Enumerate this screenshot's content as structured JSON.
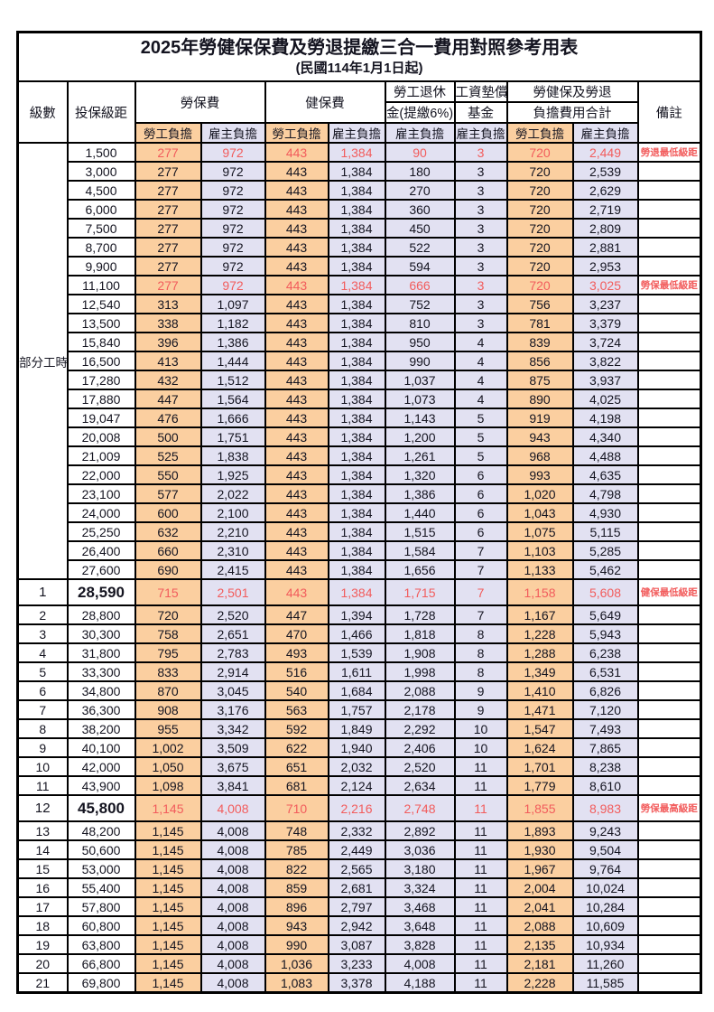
{
  "title": "2025年勞健保保費及勞退提繳三合一費用對照參考用表",
  "subtitle": "(民國114年1月1日起)",
  "header": {
    "level": "級數",
    "bracket": "投保級距",
    "labor_fee": "勞保費",
    "health_fee": "健保費",
    "pension_line1": "勞工退休",
    "pension_line2": "金(提繳6%)",
    "fund_line1": "工資墊償",
    "fund_line2": "基金",
    "total_line1": "勞健保及勞退",
    "total_line2": "負擔費用合計",
    "remark": "備註",
    "employee": "勞工負擔",
    "employer": "雇主負擔"
  },
  "part_time_label": "部分工時",
  "part_time_span": 23,
  "colors": {
    "employee_bg": "#fbcfa0",
    "employer_bg": "#e2e1f2",
    "highlight_red": "#f25c5c",
    "border": "#000000"
  },
  "rows": [
    {
      "level": "",
      "bracket": "1,500",
      "cells": [
        "277",
        "972",
        "443",
        "1,384",
        "90",
        "3",
        "720",
        "2,449"
      ],
      "remark": "勞退最低級距",
      "red": true,
      "big": false
    },
    {
      "level": "",
      "bracket": "3,000",
      "cells": [
        "277",
        "972",
        "443",
        "1,384",
        "180",
        "3",
        "720",
        "2,539"
      ],
      "remark": "",
      "red": false,
      "big": false
    },
    {
      "level": "",
      "bracket": "4,500",
      "cells": [
        "277",
        "972",
        "443",
        "1,384",
        "270",
        "3",
        "720",
        "2,629"
      ],
      "remark": "",
      "red": false,
      "big": false
    },
    {
      "level": "",
      "bracket": "6,000",
      "cells": [
        "277",
        "972",
        "443",
        "1,384",
        "360",
        "3",
        "720",
        "2,719"
      ],
      "remark": "",
      "red": false,
      "big": false
    },
    {
      "level": "",
      "bracket": "7,500",
      "cells": [
        "277",
        "972",
        "443",
        "1,384",
        "450",
        "3",
        "720",
        "2,809"
      ],
      "remark": "",
      "red": false,
      "big": false
    },
    {
      "level": "",
      "bracket": "8,700",
      "cells": [
        "277",
        "972",
        "443",
        "1,384",
        "522",
        "3",
        "720",
        "2,881"
      ],
      "remark": "",
      "red": false,
      "big": false
    },
    {
      "level": "",
      "bracket": "9,900",
      "cells": [
        "277",
        "972",
        "443",
        "1,384",
        "594",
        "3",
        "720",
        "2,953"
      ],
      "remark": "",
      "red": false,
      "big": false
    },
    {
      "level": "",
      "bracket": "11,100",
      "cells": [
        "277",
        "972",
        "443",
        "1,384",
        "666",
        "3",
        "720",
        "3,025"
      ],
      "remark": "勞保最低級距",
      "red": true,
      "big": false
    },
    {
      "level": "",
      "bracket": "12,540",
      "cells": [
        "313",
        "1,097",
        "443",
        "1,384",
        "752",
        "3",
        "756",
        "3,237"
      ],
      "remark": "",
      "red": false,
      "big": false
    },
    {
      "level": "",
      "bracket": "13,500",
      "cells": [
        "338",
        "1,182",
        "443",
        "1,384",
        "810",
        "3",
        "781",
        "3,379"
      ],
      "remark": "",
      "red": false,
      "big": false
    },
    {
      "level": "",
      "bracket": "15,840",
      "cells": [
        "396",
        "1,386",
        "443",
        "1,384",
        "950",
        "4",
        "839",
        "3,724"
      ],
      "remark": "",
      "red": false,
      "big": false
    },
    {
      "level": "",
      "bracket": "16,500",
      "cells": [
        "413",
        "1,444",
        "443",
        "1,384",
        "990",
        "4",
        "856",
        "3,822"
      ],
      "remark": "",
      "red": false,
      "big": false
    },
    {
      "level": "",
      "bracket": "17,280",
      "cells": [
        "432",
        "1,512",
        "443",
        "1,384",
        "1,037",
        "4",
        "875",
        "3,937"
      ],
      "remark": "",
      "red": false,
      "big": false
    },
    {
      "level": "",
      "bracket": "17,880",
      "cells": [
        "447",
        "1,564",
        "443",
        "1,384",
        "1,073",
        "4",
        "890",
        "4,025"
      ],
      "remark": "",
      "red": false,
      "big": false
    },
    {
      "level": "",
      "bracket": "19,047",
      "cells": [
        "476",
        "1,666",
        "443",
        "1,384",
        "1,143",
        "5",
        "919",
        "4,198"
      ],
      "remark": "",
      "red": false,
      "big": false
    },
    {
      "level": "",
      "bracket": "20,008",
      "cells": [
        "500",
        "1,751",
        "443",
        "1,384",
        "1,200",
        "5",
        "943",
        "4,340"
      ],
      "remark": "",
      "red": false,
      "big": false
    },
    {
      "level": "",
      "bracket": "21,009",
      "cells": [
        "525",
        "1,838",
        "443",
        "1,384",
        "1,261",
        "5",
        "968",
        "4,488"
      ],
      "remark": "",
      "red": false,
      "big": false
    },
    {
      "level": "",
      "bracket": "22,000",
      "cells": [
        "550",
        "1,925",
        "443",
        "1,384",
        "1,320",
        "6",
        "993",
        "4,635"
      ],
      "remark": "",
      "red": false,
      "big": false
    },
    {
      "level": "",
      "bracket": "23,100",
      "cells": [
        "577",
        "2,022",
        "443",
        "1,384",
        "1,386",
        "6",
        "1,020",
        "4,798"
      ],
      "remark": "",
      "red": false,
      "big": false
    },
    {
      "level": "",
      "bracket": "24,000",
      "cells": [
        "600",
        "2,100",
        "443",
        "1,384",
        "1,440",
        "6",
        "1,043",
        "4,930"
      ],
      "remark": "",
      "red": false,
      "big": false
    },
    {
      "level": "",
      "bracket": "25,250",
      "cells": [
        "632",
        "2,210",
        "443",
        "1,384",
        "1,515",
        "6",
        "1,075",
        "5,115"
      ],
      "remark": "",
      "red": false,
      "big": false
    },
    {
      "level": "",
      "bracket": "26,400",
      "cells": [
        "660",
        "2,310",
        "443",
        "1,384",
        "1,584",
        "7",
        "1,103",
        "5,285"
      ],
      "remark": "",
      "red": false,
      "big": false
    },
    {
      "level": "",
      "bracket": "27,600",
      "cells": [
        "690",
        "2,415",
        "443",
        "1,384",
        "1,656",
        "7",
        "1,133",
        "5,462"
      ],
      "remark": "",
      "red": false,
      "big": false
    },
    {
      "level": "1",
      "bracket": "28,590",
      "cells": [
        "715",
        "2,501",
        "443",
        "1,384",
        "1,715",
        "7",
        "1,158",
        "5,608"
      ],
      "remark": "健保最低級距",
      "red": true,
      "big": true
    },
    {
      "level": "2",
      "bracket": "28,800",
      "cells": [
        "720",
        "2,520",
        "447",
        "1,394",
        "1,728",
        "7",
        "1,167",
        "5,649"
      ],
      "remark": "",
      "red": false,
      "big": false
    },
    {
      "level": "3",
      "bracket": "30,300",
      "cells": [
        "758",
        "2,651",
        "470",
        "1,466",
        "1,818",
        "8",
        "1,228",
        "5,943"
      ],
      "remark": "",
      "red": false,
      "big": false
    },
    {
      "level": "4",
      "bracket": "31,800",
      "cells": [
        "795",
        "2,783",
        "493",
        "1,539",
        "1,908",
        "8",
        "1,288",
        "6,238"
      ],
      "remark": "",
      "red": false,
      "big": false
    },
    {
      "level": "5",
      "bracket": "33,300",
      "cells": [
        "833",
        "2,914",
        "516",
        "1,611",
        "1,998",
        "8",
        "1,349",
        "6,531"
      ],
      "remark": "",
      "red": false,
      "big": false
    },
    {
      "level": "6",
      "bracket": "34,800",
      "cells": [
        "870",
        "3,045",
        "540",
        "1,684",
        "2,088",
        "9",
        "1,410",
        "6,826"
      ],
      "remark": "",
      "red": false,
      "big": false
    },
    {
      "level": "7",
      "bracket": "36,300",
      "cells": [
        "908",
        "3,176",
        "563",
        "1,757",
        "2,178",
        "9",
        "1,471",
        "7,120"
      ],
      "remark": "",
      "red": false,
      "big": false
    },
    {
      "level": "8",
      "bracket": "38,200",
      "cells": [
        "955",
        "3,342",
        "592",
        "1,849",
        "2,292",
        "10",
        "1,547",
        "7,493"
      ],
      "remark": "",
      "red": false,
      "big": false
    },
    {
      "level": "9",
      "bracket": "40,100",
      "cells": [
        "1,002",
        "3,509",
        "622",
        "1,940",
        "2,406",
        "10",
        "1,624",
        "7,865"
      ],
      "remark": "",
      "red": false,
      "big": false
    },
    {
      "level": "10",
      "bracket": "42,000",
      "cells": [
        "1,050",
        "3,675",
        "651",
        "2,032",
        "2,520",
        "11",
        "1,701",
        "8,238"
      ],
      "remark": "",
      "red": false,
      "big": false
    },
    {
      "level": "11",
      "bracket": "43,900",
      "cells": [
        "1,098",
        "3,841",
        "681",
        "2,124",
        "2,634",
        "11",
        "1,779",
        "8,610"
      ],
      "remark": "",
      "red": false,
      "big": false
    },
    {
      "level": "12",
      "bracket": "45,800",
      "cells": [
        "1,145",
        "4,008",
        "710",
        "2,216",
        "2,748",
        "11",
        "1,855",
        "8,983"
      ],
      "remark": "勞保最高級距",
      "red": true,
      "big": true
    },
    {
      "level": "13",
      "bracket": "48,200",
      "cells": [
        "1,145",
        "4,008",
        "748",
        "2,332",
        "2,892",
        "11",
        "1,893",
        "9,243"
      ],
      "remark": "",
      "red": false,
      "big": false
    },
    {
      "level": "14",
      "bracket": "50,600",
      "cells": [
        "1,145",
        "4,008",
        "785",
        "2,449",
        "3,036",
        "11",
        "1,930",
        "9,504"
      ],
      "remark": "",
      "red": false,
      "big": false
    },
    {
      "level": "15",
      "bracket": "53,000",
      "cells": [
        "1,145",
        "4,008",
        "822",
        "2,565",
        "3,180",
        "11",
        "1,967",
        "9,764"
      ],
      "remark": "",
      "red": false,
      "big": false
    },
    {
      "level": "16",
      "bracket": "55,400",
      "cells": [
        "1,145",
        "4,008",
        "859",
        "2,681",
        "3,324",
        "11",
        "2,004",
        "10,024"
      ],
      "remark": "",
      "red": false,
      "big": false
    },
    {
      "level": "17",
      "bracket": "57,800",
      "cells": [
        "1,145",
        "4,008",
        "896",
        "2,797",
        "3,468",
        "11",
        "2,041",
        "10,284"
      ],
      "remark": "",
      "red": false,
      "big": false
    },
    {
      "level": "18",
      "bracket": "60,800",
      "cells": [
        "1,145",
        "4,008",
        "943",
        "2,942",
        "3,648",
        "11",
        "2,088",
        "10,609"
      ],
      "remark": "",
      "red": false,
      "big": false
    },
    {
      "level": "19",
      "bracket": "63,800",
      "cells": [
        "1,145",
        "4,008",
        "990",
        "3,087",
        "3,828",
        "11",
        "2,135",
        "10,934"
      ],
      "remark": "",
      "red": false,
      "big": false
    },
    {
      "level": "20",
      "bracket": "66,800",
      "cells": [
        "1,145",
        "4,008",
        "1,036",
        "3,233",
        "4,008",
        "11",
        "2,181",
        "11,260"
      ],
      "remark": "",
      "red": false,
      "big": false
    },
    {
      "level": "21",
      "bracket": "69,800",
      "cells": [
        "1,145",
        "4,008",
        "1,083",
        "3,378",
        "4,188",
        "11",
        "2,228",
        "11,585"
      ],
      "remark": "",
      "red": false,
      "big": false
    }
  ]
}
